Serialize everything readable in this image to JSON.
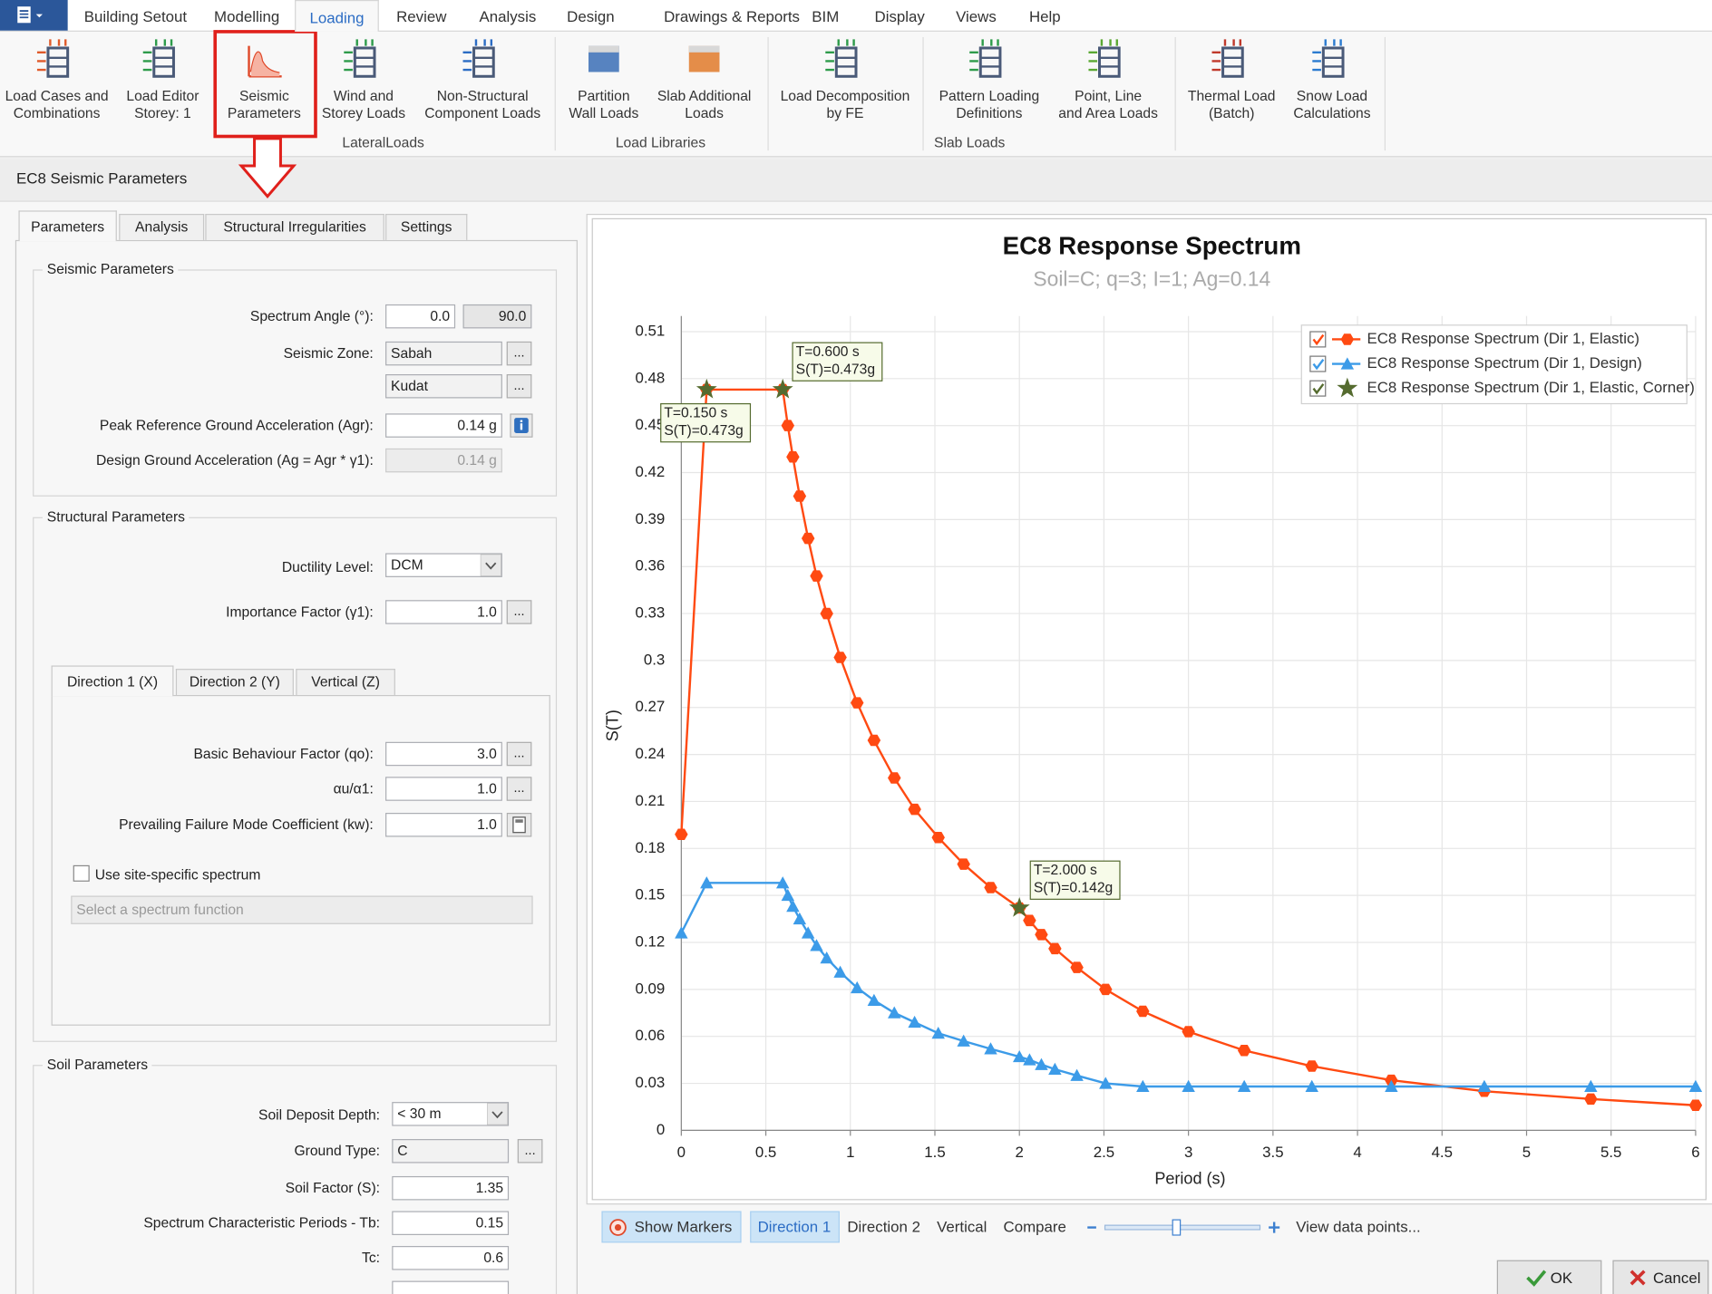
{
  "ribbon": {
    "tabs": [
      "Building Setout",
      "Modelling",
      "Loading",
      "Review",
      "Analysis",
      "Design",
      "Drawings & Reports",
      "BIM",
      "Display",
      "Views",
      "Help"
    ],
    "buttons": [
      "Load Cases and\nCombinations",
      "Load Editor\nStorey: 1",
      "Seismic\nParameters",
      "Wind and\nStorey Loads",
      "Non-Structural\nComponent Loads",
      "Partition\nWall Loads",
      "Slab Additional\nLoads",
      "Load Decomposition\nby FE",
      "Pattern Loading\nDefinitions",
      "Point, Line\nand Area Loads",
      "Thermal Load\n(Batch)",
      "Snow Load\nCalculations"
    ],
    "groups": [
      "LateralLoads",
      "Load Libraries",
      "Slab Loads"
    ]
  },
  "dialog": {
    "title": "EC8 Seismic Parameters",
    "tabs": [
      "Parameters",
      "Analysis",
      "Structural Irregularities",
      "Settings"
    ],
    "browse": "...",
    "seismic": {
      "title": "Seismic Parameters",
      "spectrum_angle": {
        "label": "Spectrum Angle (°):",
        "values": [
          "0.0",
          "90.0"
        ]
      },
      "seismic_zone": {
        "label": "Seismic Zone:",
        "values": [
          "Sabah",
          "Kudat"
        ]
      },
      "peak_acceleration": {
        "label": "Peak Reference Ground Acceleration (Agr):",
        "value": "0.14 g"
      },
      "design_acceleration": {
        "label": "Design Ground Acceleration (Ag = Agr * γ1):",
        "value": "0.14 g"
      }
    },
    "structural": {
      "title": "Structural Parameters",
      "ductility": {
        "label": "Ductility Level:",
        "value": "DCM"
      },
      "importance": {
        "label": "Importance Factor (γ1):",
        "value": "1.0"
      },
      "direction_tabs": [
        "Direction 1 (X)",
        "Direction 2 (Y)",
        "Vertical (Z)"
      ],
      "behaviour_factor": {
        "label": "Basic Behaviour Factor (qo):",
        "value": "3.0"
      },
      "alpha_ratio": {
        "label": "αu/α1:",
        "value": "1.0"
      },
      "kw": {
        "label": "Prevailing Failure Mode Coefficient (kw):",
        "value": "1.0"
      },
      "site_specific": "Use site-specific spectrum",
      "spectrum_function": "Select a spectrum function"
    },
    "soil": {
      "title": "Soil Parameters",
      "depth": {
        "label": "Soil Deposit Depth:",
        "value": "< 30 m"
      },
      "ground_type": {
        "label": "Ground Type:",
        "value": "C"
      },
      "soil_factor": {
        "label": "Soil Factor (S):",
        "value": "1.35"
      },
      "tb": {
        "label": "Spectrum Characteristic Periods - Tb:",
        "value": "0.15"
      },
      "tc": {
        "label": "Tc:",
        "value": "0.6"
      }
    },
    "toolbar": {
      "show_markers": "Show Markers",
      "views": [
        "Direction 1",
        "Direction 2",
        "Vertical",
        "Compare"
      ],
      "view_data_points": "View data points..."
    },
    "buttons": {
      "ok": "OK",
      "cancel": "Cancel"
    }
  },
  "chart_data": {
    "type": "line",
    "title": "EC8 Response Spectrum",
    "subtitle": "Soil=C; q=3; I=1; Ag=0.14",
    "x_label": "Period (s)",
    "y_label": "S(T)",
    "xlim": [
      0,
      6
    ],
    "ylim": [
      0,
      0.52
    ],
    "xticks": [
      0,
      0.5,
      1,
      1.5,
      2,
      2.5,
      3,
      3.5,
      4,
      4.5,
      5,
      5.5,
      6
    ],
    "yticks": [
      0,
      0.03,
      0.06,
      0.09,
      0.12,
      0.15,
      0.18,
      0.21,
      0.24,
      0.27,
      0.3,
      0.33,
      0.36,
      0.39,
      0.42,
      0.45,
      0.48,
      0.51
    ],
    "grid": true,
    "legend": "top-right",
    "series": [
      {
        "name": "EC8 Response Spectrum (Dir 1, Elastic)",
        "color": "#ff4a12",
        "marker": "hexagon",
        "line": true,
        "x": [
          0,
          0.15,
          0.6,
          0.63,
          0.66,
          0.7,
          0.75,
          0.8,
          0.86,
          0.94,
          1.04,
          1.14,
          1.26,
          1.38,
          1.52,
          1.67,
          1.83,
          2.0,
          2.06,
          2.13,
          2.21,
          2.34,
          2.51,
          2.73,
          3.0,
          3.33,
          3.73,
          4.2,
          4.75,
          5.38,
          6.0
        ],
        "values": [
          0.189,
          0.473,
          0.473,
          0.45,
          0.43,
          0.405,
          0.378,
          0.354,
          0.33,
          0.302,
          0.273,
          0.249,
          0.225,
          0.205,
          0.187,
          0.17,
          0.155,
          0.142,
          0.134,
          0.125,
          0.116,
          0.104,
          0.09,
          0.076,
          0.063,
          0.051,
          0.041,
          0.032,
          0.025,
          0.02,
          0.016
        ]
      },
      {
        "name": "EC8 Response Spectrum (Dir 1, Design)",
        "color": "#3c9be8",
        "marker": "triangle",
        "line": true,
        "x": [
          0,
          0.15,
          0.6,
          0.63,
          0.66,
          0.7,
          0.75,
          0.8,
          0.86,
          0.94,
          1.04,
          1.14,
          1.26,
          1.38,
          1.52,
          1.67,
          1.83,
          2.0,
          2.06,
          2.13,
          2.21,
          2.34,
          2.51,
          2.73,
          3.0,
          3.33,
          3.73,
          4.2,
          4.75,
          5.38,
          6.0
        ],
        "values": [
          0.126,
          0.158,
          0.158,
          0.15,
          0.143,
          0.135,
          0.126,
          0.118,
          0.11,
          0.101,
          0.091,
          0.083,
          0.075,
          0.069,
          0.062,
          0.057,
          0.052,
          0.047,
          0.045,
          0.042,
          0.039,
          0.035,
          0.03,
          0.028,
          0.028,
          0.028,
          0.028,
          0.028,
          0.028,
          0.028,
          0.028
        ]
      },
      {
        "name": "EC8 Response Spectrum (Dir 1, Elastic, Corner)",
        "color": "#556b2f",
        "marker": "star",
        "line": false,
        "x": [
          0.15,
          0.6,
          2.0
        ],
        "values": [
          0.473,
          0.473,
          0.142
        ]
      }
    ],
    "annotations": [
      [
        "T=0.150 s",
        "S(T)=0.473g"
      ],
      [
        "T=0.600 s",
        "S(T)=0.473g"
      ],
      [
        "T=2.000 s",
        "S(T)=0.142g"
      ]
    ]
  }
}
